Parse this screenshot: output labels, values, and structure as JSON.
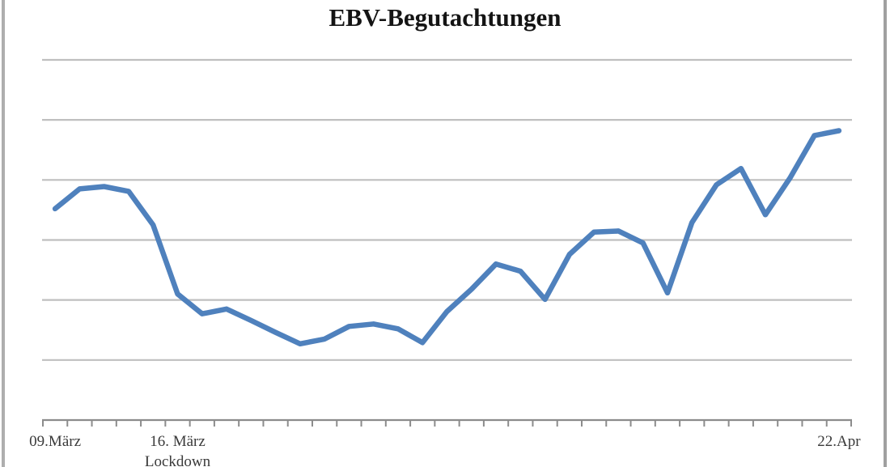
{
  "page": {
    "background": "#ffffff",
    "frame": {
      "left_border_color": "#aeaeae",
      "right_border_color": "#a0a0a0"
    }
  },
  "chart_data": {
    "type": "line",
    "title": "EBV-Begutachtungen",
    "legend": "none",
    "grid": {
      "horizontal": true,
      "vertical": false,
      "color": "#bfbfbf",
      "gridline_count": 6
    },
    "x_axis": {
      "color": "#8c8c8c",
      "tick_count": 34,
      "visible_tick_labels": [
        {
          "text": "09.März",
          "subtext": "",
          "point_index": 0
        },
        {
          "text": "16. März",
          "subtext": "Lockdown",
          "point_index": 5
        },
        {
          "text": "22.Apr",
          "subtext": "",
          "point_index": 32
        }
      ]
    },
    "y_axis": {
      "labels_visible": false,
      "unit": "gridline-steps (no numeric y labels visible; baseline = 0, each gridline = +1)",
      "ylim": [
        0,
        6
      ],
      "gridline_values": [
        1,
        2,
        3,
        4,
        5,
        6
      ]
    },
    "series": [
      {
        "name": "EBV-Begutachtungen",
        "color": "#4F81BD",
        "points": 33,
        "values": [
          3.52,
          3.85,
          3.89,
          3.81,
          3.25,
          2.1,
          1.77,
          1.85,
          1.66,
          1.46,
          1.27,
          1.35,
          1.56,
          1.6,
          1.52,
          1.29,
          1.81,
          2.18,
          2.6,
          2.48,
          2.01,
          2.76,
          3.13,
          3.15,
          2.95,
          2.12,
          3.29,
          3.92,
          4.19,
          3.42,
          4.03,
          4.74,
          4.82
        ]
      }
    ],
    "annotations": [
      {
        "text": "Lockdown",
        "attached_to": "x-label 16. März",
        "note": "second line, partially cut off at bottom edge of image"
      }
    ]
  }
}
